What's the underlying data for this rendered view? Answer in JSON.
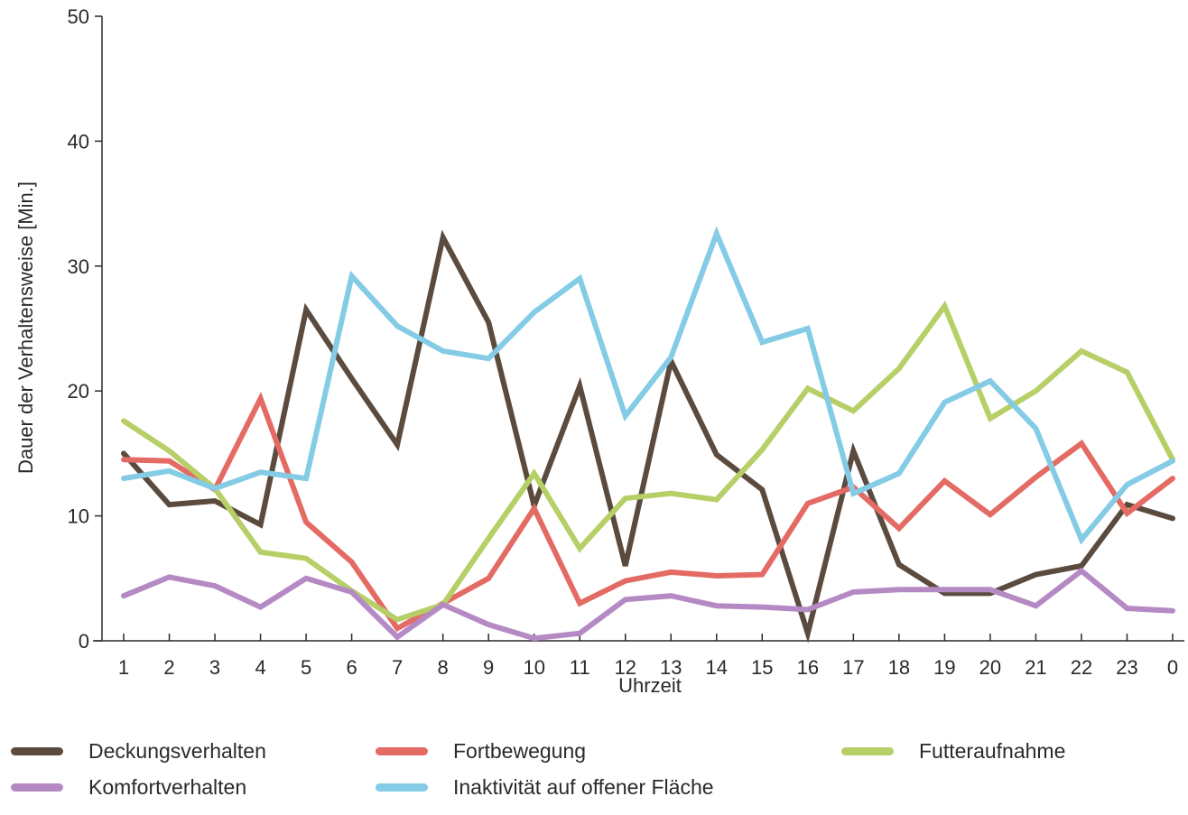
{
  "chart_data": {
    "type": "line",
    "xlabel": "Uhrzeit",
    "ylabel": "Dauer der Verhaltensweise [Min.]",
    "ylim": [
      0,
      50
    ],
    "yticks": [
      0,
      10,
      20,
      30,
      40,
      50
    ],
    "categories": [
      "1",
      "2",
      "3",
      "4",
      "5",
      "6",
      "7",
      "8",
      "9",
      "10",
      "11",
      "12",
      "13",
      "14",
      "15",
      "16",
      "17",
      "18",
      "19",
      "20",
      "21",
      "22",
      "23",
      "0"
    ],
    "legend_position": "bottom",
    "grid": false,
    "series": [
      {
        "name": "Deckungsverhalten",
        "color": "#5b4b3f",
        "values": [
          15.0,
          10.9,
          11.2,
          9.3,
          26.5,
          21.0,
          15.7,
          32.3,
          25.5,
          10.8,
          20.4,
          6.0,
          22.4,
          14.9,
          12.1,
          0.6,
          15.2,
          6.1,
          3.8,
          3.8,
          5.3,
          6.0,
          10.9,
          9.8
        ]
      },
      {
        "name": "Fortbewegung",
        "color": "#e46a64",
        "values": [
          14.5,
          14.4,
          12.1,
          19.4,
          9.5,
          6.3,
          1.0,
          3.0,
          5.0,
          10.6,
          3.0,
          4.8,
          5.5,
          5.2,
          5.3,
          11.0,
          12.3,
          9.0,
          12.8,
          10.1,
          13.1,
          15.8,
          10.2,
          13.0
        ]
      },
      {
        "name": "Futteraufnahme",
        "color": "#b7cf67",
        "values": [
          17.6,
          15.2,
          12.2,
          7.1,
          6.6,
          4.0,
          1.7,
          2.9,
          8.2,
          13.4,
          7.4,
          11.4,
          11.8,
          11.3,
          15.3,
          20.2,
          18.4,
          21.8,
          26.8,
          17.8,
          20.0,
          23.2,
          21.5,
          14.5
        ]
      },
      {
        "name": "Komfortverhalten",
        "color": "#b58ac4",
        "values": [
          3.6,
          5.1,
          4.4,
          2.7,
          5.0,
          3.9,
          0.3,
          2.9,
          1.3,
          0.2,
          0.6,
          3.3,
          3.6,
          2.8,
          2.7,
          2.5,
          3.9,
          4.1,
          4.1,
          4.1,
          2.8,
          5.6,
          2.6,
          2.4
        ]
      },
      {
        "name": "Inaktivität auf offener Fläche",
        "color": "#84cbe5",
        "values": [
          13.0,
          13.6,
          12.2,
          13.5,
          13.0,
          29.2,
          25.2,
          23.2,
          22.6,
          26.3,
          29.0,
          18.0,
          22.7,
          32.6,
          23.9,
          25.0,
          11.8,
          13.4,
          19.1,
          20.8,
          17.0,
          8.1,
          12.5,
          14.4
        ]
      }
    ]
  },
  "legend": [
    {
      "label": "Deckungsverhalten",
      "color": "#5b4b3f"
    },
    {
      "label": "Fortbewegung",
      "color": "#e46a64"
    },
    {
      "label": "Futteraufnahme",
      "color": "#b7cf67"
    },
    {
      "label": "Komfortverhalten",
      "color": "#b58ac4"
    },
    {
      "label": "Inaktivität auf offener Fläche",
      "color": "#84cbe5"
    }
  ]
}
